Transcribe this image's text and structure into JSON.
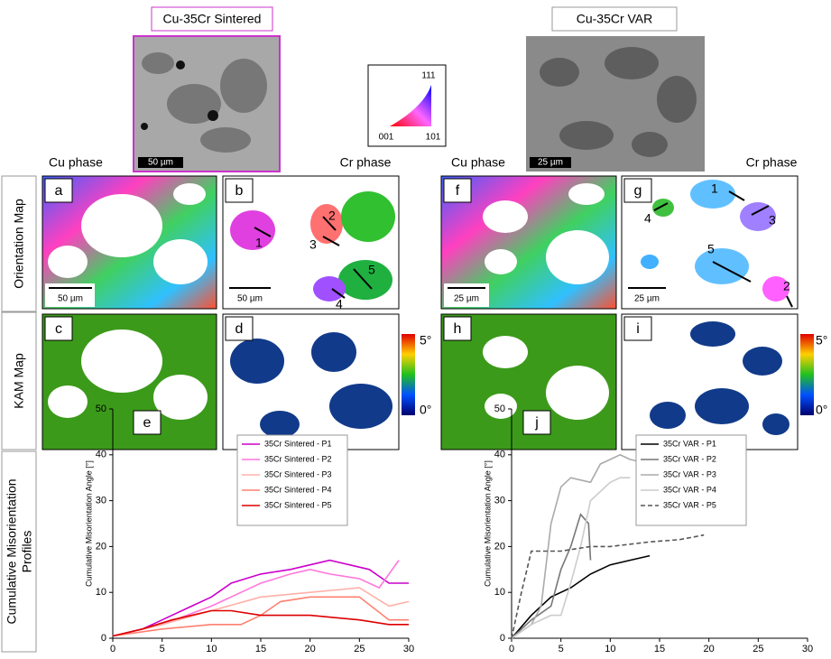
{
  "figure": {
    "sintered_title": "Cu-35Cr Sintered",
    "var_title": "Cu-35Cr VAR",
    "sem_scales": [
      "50 µm",
      "25 µm"
    ],
    "ipf_labels": [
      "111",
      "001",
      "101"
    ],
    "phase_labels": [
      "Cu phase",
      "Cr phase",
      "Cu phase",
      "Cr phase"
    ],
    "row_labels": [
      "Orientation Map",
      "KAM Map"
    ],
    "profiles_label": [
      "Cumulative Misorientation",
      "Profiles"
    ],
    "panel_letters": [
      "a",
      "b",
      "f",
      "g",
      "c",
      "d",
      "h",
      "i",
      "e",
      "j"
    ],
    "map_scales": [
      "50 µm",
      "50 µm",
      "25 µm",
      "25 µm"
    ],
    "kam_scale": [
      "5°",
      "0°"
    ],
    "arrows_b": [
      "1",
      "2",
      "3",
      "4",
      "5"
    ],
    "arrows_g": [
      "1",
      "2",
      "3",
      "4",
      "5"
    ]
  },
  "chart_data": [
    {
      "type": "line",
      "xlabel": "Profile Distance  [μm]",
      "ylabel": "Cumulative Misorientation Angle [°]",
      "xlim": [
        0,
        30
      ],
      "ylim": [
        0,
        50
      ],
      "xticks": [
        0,
        5,
        10,
        15,
        20,
        25,
        30
      ],
      "yticks": [
        0,
        10,
        20,
        30,
        40,
        50
      ],
      "legend": "upper right",
      "series": [
        {
          "name": "35Cr Sintered - P1",
          "color": "#cc00cc",
          "x": [
            0,
            3,
            5,
            8,
            10,
            12,
            15,
            18,
            20,
            22,
            24,
            26,
            28,
            30
          ],
          "values": [
            0.5,
            2,
            4,
            7,
            9,
            12,
            14,
            15,
            16,
            17,
            16,
            15,
            12,
            12
          ]
        },
        {
          "name": "35Cr Sintered - P2",
          "color": "#ff77dd",
          "x": [
            0,
            5,
            10,
            13,
            15,
            18,
            20,
            22,
            25,
            27,
            29
          ],
          "values": [
            0.5,
            3,
            7,
            10,
            12,
            14,
            15,
            14,
            13,
            11,
            17
          ]
        },
        {
          "name": "35Cr Sintered - P3",
          "color": "#ffb0a8",
          "x": [
            0,
            5,
            10,
            15,
            20,
            25,
            28,
            30
          ],
          "values": [
            0.5,
            3,
            6,
            9,
            10,
            11,
            7,
            8
          ]
        },
        {
          "name": "35Cr Sintered - P4",
          "color": "#ff8070",
          "x": [
            0,
            5,
            10,
            13,
            15,
            17,
            20,
            25,
            28,
            30
          ],
          "values": [
            0.5,
            2,
            3,
            3,
            5,
            8,
            9,
            9,
            4,
            4
          ]
        },
        {
          "name": "35Cr Sintered - P5",
          "color": "#dd0000",
          "x": [
            0,
            3,
            6,
            10,
            12,
            15,
            20,
            25,
            28,
            30
          ],
          "values": [
            0.5,
            2,
            4,
            6,
            6,
            5,
            5,
            4,
            3,
            3
          ]
        }
      ]
    },
    {
      "type": "line",
      "xlabel": "Profile Distance  [μm]",
      "ylabel": "Cumulative Misorientation Angle [°]",
      "xlim": [
        0,
        30
      ],
      "ylim": [
        0,
        50
      ],
      "xticks": [
        0,
        5,
        10,
        15,
        20,
        25,
        30
      ],
      "yticks": [
        0,
        10,
        20,
        30,
        40,
        50
      ],
      "legend": "upper right",
      "series": [
        {
          "name": "35Cr VAR - P1",
          "color": "#000000",
          "x": [
            0,
            2,
            4,
            6,
            8,
            10,
            12,
            14
          ],
          "values": [
            0,
            5,
            9,
            11,
            14,
            16,
            17,
            18
          ]
        },
        {
          "name": "35Cr VAR - P2",
          "color": "#777777",
          "x": [
            0,
            2,
            4,
            5,
            6,
            7,
            7.8,
            8
          ],
          "values": [
            0,
            4,
            7,
            15,
            20,
            27,
            25,
            17
          ]
        },
        {
          "name": "35Cr VAR - P3",
          "color": "#aaaaaa",
          "x": [
            0,
            2,
            3,
            4,
            5,
            6,
            8,
            9,
            11,
            12,
            13
          ],
          "values": [
            0,
            3,
            7,
            25,
            33,
            35,
            34,
            38,
            40,
            39,
            38.5
          ]
        },
        {
          "name": "35Cr VAR - P4",
          "color": "#cccccc",
          "x": [
            0,
            2,
            4,
            5,
            6,
            7,
            8,
            9,
            10,
            11,
            12
          ],
          "values": [
            0,
            3,
            5,
            5,
            12,
            20,
            30,
            32,
            34,
            35,
            35
          ]
        },
        {
          "name": "35Cr VAR - P5",
          "color": "#555555",
          "linestyle": "dashed",
          "x": [
            0,
            1,
            2,
            3,
            5,
            8,
            10,
            14,
            17,
            19.5
          ],
          "values": [
            0,
            10,
            19,
            19,
            19,
            20,
            20,
            21,
            21.5,
            22.5
          ]
        }
      ]
    }
  ]
}
